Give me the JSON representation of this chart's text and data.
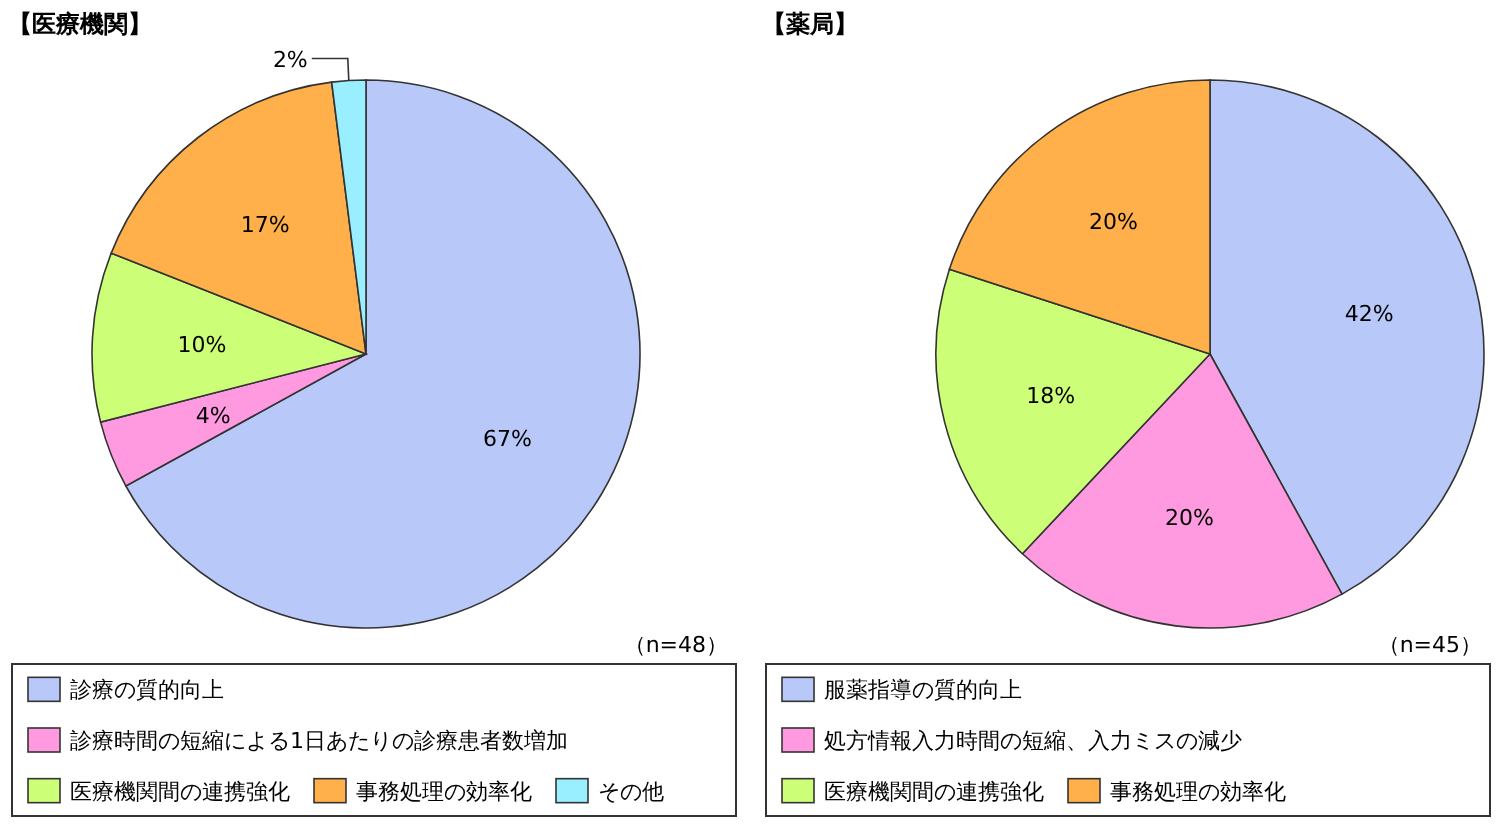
{
  "chart_data": [
    {
      "type": "pie",
      "title": "【医療機関】",
      "categories": [
        "診療の質的向上",
        "診療時間の短縮による1日あたりの診療患者数増加",
        "医療機関間の連携強化",
        "事務処理の効率化",
        "その他"
      ],
      "values": [
        67,
        4,
        10,
        17,
        2
      ],
      "colors": [
        "#b8c8f8",
        "#ff99e0",
        "#ccff77",
        "#ffb04a",
        "#99eeff"
      ],
      "value_labels": [
        "67%",
        "4%",
        "10%",
        "17%",
        "2%"
      ],
      "annotations": [
        "（n=48）"
      ],
      "legend": "bottom"
    },
    {
      "type": "pie",
      "title": "【薬局】",
      "categories": [
        "服薬指導の質的向上",
        "処方情報入力時間の短縮、入力ミスの減少",
        "医療機関間の連携強化",
        "事務処理の効率化"
      ],
      "values": [
        42,
        20,
        18,
        20
      ],
      "colors": [
        "#b8c8f8",
        "#ff99e0",
        "#ccff77",
        "#ffb04a"
      ],
      "value_labels": [
        "42%",
        "20%",
        "18%",
        "20%"
      ],
      "annotations": [
        "（n=45）"
      ],
      "legend": "bottom"
    }
  ]
}
